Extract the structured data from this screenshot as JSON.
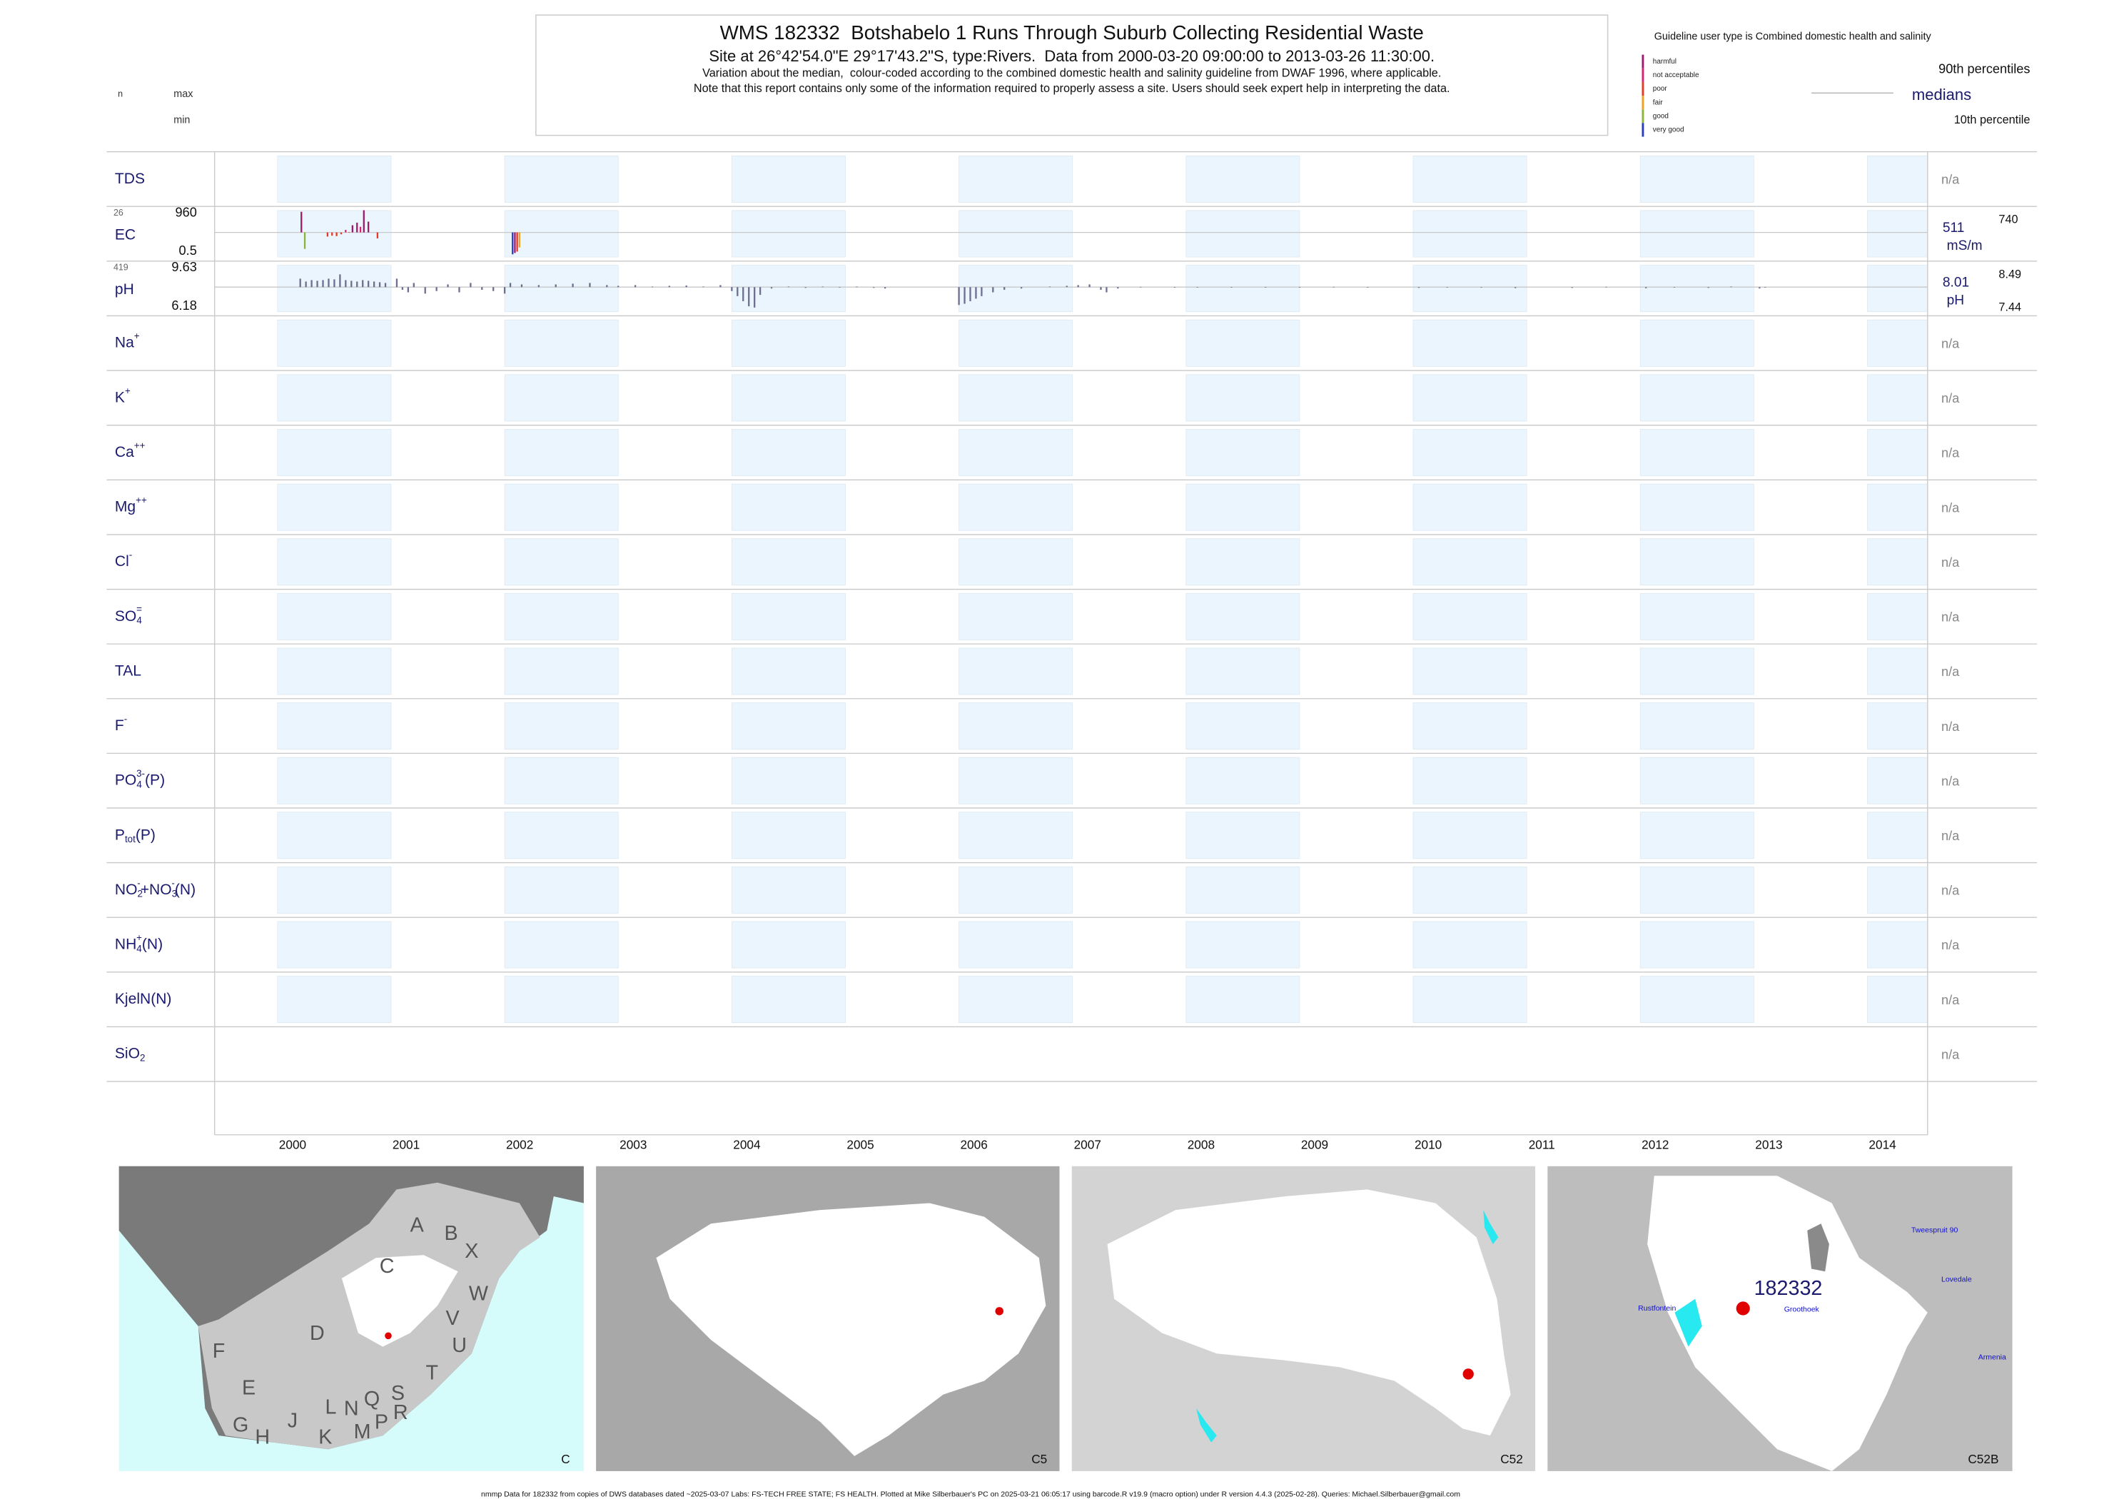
{
  "header": {
    "title": "WMS 182332  Botshabelo 1 Runs Through Suburb Collecting Residential Waste",
    "subtitle": "Site at 26°42'54.0\"E 29°17'43.2\"S, type:Rivers.  Data from 2000-03-20 09:00:00 to 2013-03-26 11:30:00.",
    "note1": "Variation about the median,  colour-coded according to the combined domestic health and salinity guideline from DWAF 1996, where applicable.",
    "note2": "Note that this report contains only some of the information required to properly assess a site. Users should seek expert help in interpreting the data."
  },
  "left_header": {
    "n": "n",
    "max": "max",
    "min": "min"
  },
  "legend": {
    "title": "Guideline user type is Combined domestic health and salinity",
    "classes": [
      {
        "name": "harmful",
        "color": "#9c1c6c"
      },
      {
        "name": "not acceptable",
        "color": "#d8246e"
      },
      {
        "name": "poor",
        "color": "#e63a28"
      },
      {
        "name": "fair",
        "color": "#f0a024"
      },
      {
        "name": "good",
        "color": "#8cb43c"
      },
      {
        "name": "very good",
        "color": "#2a3cc0"
      }
    ],
    "p90": "90th percentiles",
    "median": "medians",
    "p10": "10th percentile"
  },
  "chart_data": {
    "type": "barcode",
    "xlim": [
      1999.446,
      2014.53
    ],
    "xticks": [
      2000,
      2001,
      2002,
      2003,
      2004,
      2005,
      2006,
      2007,
      2008,
      2009,
      2010,
      2011,
      2012,
      2013,
      2014
    ],
    "band_color": "#eaf5fd",
    "rows": [
      {
        "label": [
          [
            "TDS"
          ]
        ],
        "right": "n/a"
      },
      {
        "label": [
          [
            "EC"
          ]
        ],
        "n": 26,
        "max": 960,
        "min": 0.5,
        "median": 511,
        "unit": "mS/m",
        "p90": 740,
        "dates": [
          2000.21,
          2000.24,
          2000.44,
          2000.48,
          2000.52,
          2000.56,
          2000.6,
          2000.63,
          2000.66,
          2000.7,
          2000.73,
          2000.76,
          2000.8,
          2000.88,
          2002.07,
          2002.09,
          2002.11,
          2002.13
        ],
        "values": [
          910,
          150,
          420,
          440,
          430,
          470,
          560,
          520,
          650,
          700,
          620,
          940,
          720,
          380,
          30,
          60,
          90,
          180
        ],
        "colors": [
          "#9c1c6c",
          "#8cb43c",
          "#e63a28",
          "#e63a28",
          "#e63a28",
          "#e63a28",
          "#d8246e",
          "#e63a28",
          "#9c1c6c",
          "#9c1c6c",
          "#d8246e",
          "#9c1c6c",
          "#9c1c6c",
          "#e63a28",
          "#2a3cc0",
          "#9c1c6c",
          "#e63a28",
          "#f0a024"
        ]
      },
      {
        "label": [
          [
            "pH"
          ]
        ],
        "n": 419,
        "max": 9.63,
        "min": 6.18,
        "median": 8.01,
        "unit": "pH",
        "p90": 8.49,
        "p10": 7.44,
        "color": "#6e6e90",
        "dates": [
          2000.2,
          2000.25,
          2000.3,
          2000.35,
          2000.4,
          2000.45,
          2000.5,
          2000.55,
          2000.6,
          2000.65,
          2000.7,
          2000.75,
          2000.8,
          2000.85,
          2000.9,
          2000.95,
          2001.05,
          2001.1,
          2001.15,
          2001.2,
          2001.3,
          2001.4,
          2001.5,
          2001.6,
          2001.7,
          2001.8,
          2001.9,
          2002.0,
          2002.05,
          2002.15,
          2002.3,
          2002.45,
          2002.6,
          2002.75,
          2002.9,
          2003.0,
          2003.15,
          2003.3,
          2003.45,
          2003.6,
          2003.75,
          2003.9,
          2004.0,
          2004.05,
          2004.1,
          2004.15,
          2004.2,
          2004.25,
          2004.35,
          2004.5,
          2004.65,
          2004.8,
          2004.95,
          2005.1,
          2005.25,
          2005.35,
          2006.0,
          2006.05,
          2006.1,
          2006.15,
          2006.2,
          2006.3,
          2006.4,
          2006.55,
          2006.8,
          2006.95,
          2007.05,
          2007.15,
          2007.25,
          2007.3,
          2007.4,
          2007.6,
          2007.9,
          2008.1,
          2008.4,
          2008.7,
          2009.0,
          2009.3,
          2009.6,
          2010.05,
          2010.3,
          2010.6,
          2010.9,
          2011.4,
          2011.7,
          2012.05,
          2012.3,
          2012.6,
          2012.8,
          2013.05,
          2013.1
        ],
        "values": [
          8.6,
          8.4,
          8.5,
          8.45,
          8.5,
          8.6,
          8.55,
          8.9,
          8.5,
          8.45,
          8.4,
          8.5,
          8.45,
          8.4,
          8.35,
          8.3,
          8.6,
          7.8,
          7.6,
          8.3,
          7.5,
          7.7,
          8.2,
          7.6,
          8.3,
          7.8,
          7.7,
          7.5,
          8.3,
          8.2,
          8.15,
          8.2,
          8.25,
          8.3,
          8.15,
          8.1,
          8.15,
          8.05,
          8.1,
          8.12,
          8.05,
          8.15,
          7.7,
          7.3,
          6.9,
          6.5,
          6.4,
          7.4,
          7.9,
          8.05,
          7.95,
          8.05,
          8.0,
          8.05,
          7.95,
          7.9,
          6.6,
          6.7,
          6.9,
          7.1,
          7.3,
          7.6,
          7.8,
          7.9,
          8.05,
          8.1,
          8.15,
          8.2,
          7.8,
          7.6,
          7.9,
          8.03,
          7.98,
          8.02,
          7.99,
          8.02,
          8.0,
          8.03,
          7.98,
          7.95,
          8.02,
          7.97,
          7.93,
          7.95,
          8.03,
          7.92,
          7.97,
          7.95,
          8.05,
          7.9,
          8.0
        ]
      },
      {
        "label": [
          [
            "Na"
          ],
          [
            "+",
            "sup"
          ]
        ],
        "right": "n/a"
      },
      {
        "label": [
          [
            "K"
          ],
          [
            "+",
            "sup"
          ]
        ],
        "right": "n/a"
      },
      {
        "label": [
          [
            "Ca"
          ],
          [
            "++",
            "sup"
          ]
        ],
        "right": "n/a"
      },
      {
        "label": [
          [
            "Mg"
          ],
          [
            "++",
            "sup"
          ]
        ],
        "right": "n/a"
      },
      {
        "label": [
          [
            "Cl"
          ],
          [
            "-",
            "sup"
          ]
        ],
        "right": "n/a"
      },
      {
        "label": [
          [
            "SO"
          ],
          [
            "4",
            "sub"
          ],
          [
            "=",
            "sup"
          ]
        ],
        "right": "n/a"
      },
      {
        "label": [
          [
            "TAL"
          ]
        ],
        "right": "n/a"
      },
      {
        "label": [
          [
            "F"
          ],
          [
            "-",
            "sup"
          ]
        ],
        "right": "n/a"
      },
      {
        "label": [
          [
            "PO"
          ],
          [
            "4",
            "sub"
          ],
          [
            "3-",
            "sup"
          ],
          [
            "(P)"
          ]
        ],
        "right": "n/a"
      },
      {
        "label": [
          [
            "P"
          ],
          [
            "tot",
            "sub"
          ],
          [
            "(P)"
          ]
        ],
        "right": "n/a"
      },
      {
        "label": [
          [
            "NO"
          ],
          [
            "2",
            "sub"
          ],
          [
            "-",
            "sup"
          ],
          [
            "+NO"
          ],
          [
            "3",
            "sub"
          ],
          [
            "-",
            "sup"
          ],
          [
            "(N)"
          ]
        ],
        "right": "n/a"
      },
      {
        "label": [
          [
            "NH"
          ],
          [
            "4",
            "sub"
          ],
          [
            "+",
            "sup"
          ],
          [
            "(N)"
          ]
        ],
        "right": "n/a"
      },
      {
        "label": [
          [
            "KjelN(N)"
          ]
        ],
        "right": "n/a"
      },
      {
        "label": [
          [
            "SiO"
          ],
          [
            "2",
            "sub"
          ]
        ],
        "right": "n/a",
        "no_bands": true
      }
    ]
  },
  "maps": [
    {
      "label": "C",
      "letters": [
        "A",
        "B",
        "X",
        "W",
        "C",
        "D",
        "V",
        "U",
        "T",
        "F",
        "E",
        "G",
        "H",
        "J",
        "K",
        "L",
        "N",
        "Q",
        "M",
        "P",
        "S",
        "R"
      ]
    },
    {
      "label": "C5"
    },
    {
      "label": "C52"
    },
    {
      "label": "C52B",
      "site": "182332",
      "places": [
        "Tweespruit 90",
        "Lovedale",
        "Armenia",
        "Rustfontein",
        "Groothoek"
      ]
    }
  ],
  "footer": "nmmp Data for 182332 from copies of DWS databases dated ~2025-03-07 Labs: FS-TECH FREE STATE; FS HEALTH. Plotted at Mike Silberbauer's PC on 2025-03-21 06:05:17 using barcode.R v19.9 (macro option) under R version 4.4.3 (2025-02-28). Queries: Michael.Silberbauer@gmail.com"
}
